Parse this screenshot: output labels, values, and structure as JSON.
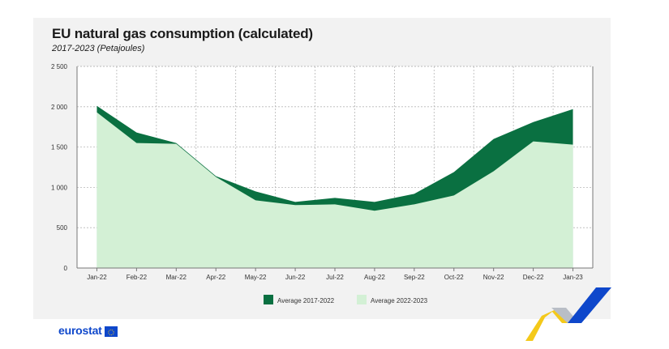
{
  "title": "EU natural gas consumption (calculated)",
  "subtitle": "2017-2023 (Petajoules)",
  "footer": {
    "logo_text": "eurostat"
  },
  "colors": {
    "dark": "#0a7041",
    "light": "#d3f0d5",
    "grid": "#b7b7b7",
    "axis": "#777777",
    "card": "#f2f2f2"
  },
  "chart_data": {
    "type": "area",
    "title": "EU natural gas consumption (calculated)",
    "subtitle": "2017-2023 (Petajoules)",
    "xlabel": "",
    "ylabel": "",
    "ylim": [
      0,
      2500
    ],
    "yticks": [
      0,
      500,
      1000,
      1500,
      2000,
      2500
    ],
    "ytick_labels": [
      "0",
      "500",
      "1 000",
      "1 500",
      "2 000",
      "2 500"
    ],
    "categories": [
      "Jan-22",
      "Feb-22",
      "Mar-22",
      "Apr-22",
      "May-22",
      "Jun-22",
      "Jul-22",
      "Aug-22",
      "Sep-22",
      "Oct-22",
      "Nov-22",
      "Dec-22",
      "Jan-23"
    ],
    "series": [
      {
        "name": "Average 2017-2022",
        "color": "#0a7041",
        "values": [
          2010,
          1680,
          1550,
          1140,
          950,
          820,
          870,
          820,
          920,
          1190,
          1600,
          1810,
          1970
        ]
      },
      {
        "name": "Average 2022-2023",
        "color": "#d3f0d5",
        "values": [
          1930,
          1550,
          1540,
          1130,
          840,
          780,
          790,
          710,
          790,
          900,
          1200,
          1570,
          1530
        ]
      }
    ],
    "grid": true,
    "legend_position": "bottom"
  }
}
